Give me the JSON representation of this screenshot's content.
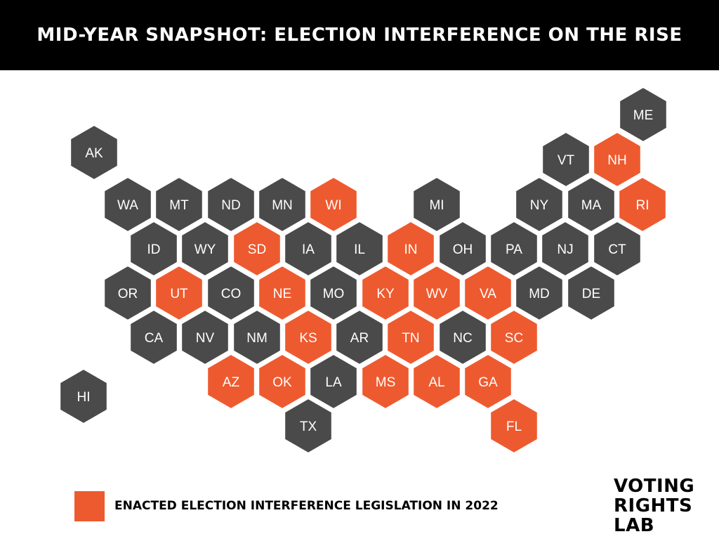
{
  "title": "MID-YEAR SNAPSHOT: ELECTION INTERFERENCE ON THE RISE",
  "colors": {
    "enacted": "#ee5a2f",
    "other": "#4a4a4a",
    "stroke": "#ffffff"
  },
  "states": [
    {
      "abbr": "AK",
      "enacted": false
    },
    {
      "abbr": "HI",
      "enacted": false
    },
    {
      "abbr": "ME",
      "enacted": false
    },
    {
      "abbr": "VT",
      "enacted": false
    },
    {
      "abbr": "NH",
      "enacted": true
    },
    {
      "abbr": "WA",
      "enacted": false
    },
    {
      "abbr": "MT",
      "enacted": false
    },
    {
      "abbr": "ND",
      "enacted": false
    },
    {
      "abbr": "MN",
      "enacted": false
    },
    {
      "abbr": "WI",
      "enacted": true
    },
    {
      "abbr": "MI",
      "enacted": false
    },
    {
      "abbr": "NY",
      "enacted": false
    },
    {
      "abbr": "MA",
      "enacted": false
    },
    {
      "abbr": "RI",
      "enacted": true
    },
    {
      "abbr": "ID",
      "enacted": false
    },
    {
      "abbr": "WY",
      "enacted": false
    },
    {
      "abbr": "SD",
      "enacted": true
    },
    {
      "abbr": "IA",
      "enacted": false
    },
    {
      "abbr": "IL",
      "enacted": false
    },
    {
      "abbr": "IN",
      "enacted": true
    },
    {
      "abbr": "OH",
      "enacted": false
    },
    {
      "abbr": "PA",
      "enacted": false
    },
    {
      "abbr": "NJ",
      "enacted": false
    },
    {
      "abbr": "CT",
      "enacted": false
    },
    {
      "abbr": "OR",
      "enacted": false
    },
    {
      "abbr": "UT",
      "enacted": true
    },
    {
      "abbr": "CO",
      "enacted": false
    },
    {
      "abbr": "NE",
      "enacted": true
    },
    {
      "abbr": "MO",
      "enacted": false
    },
    {
      "abbr": "KY",
      "enacted": true
    },
    {
      "abbr": "WV",
      "enacted": true
    },
    {
      "abbr": "VA",
      "enacted": true
    },
    {
      "abbr": "MD",
      "enacted": false
    },
    {
      "abbr": "DE",
      "enacted": false
    },
    {
      "abbr": "CA",
      "enacted": false
    },
    {
      "abbr": "NV",
      "enacted": false
    },
    {
      "abbr": "NM",
      "enacted": false
    },
    {
      "abbr": "KS",
      "enacted": true
    },
    {
      "abbr": "AR",
      "enacted": false
    },
    {
      "abbr": "TN",
      "enacted": true
    },
    {
      "abbr": "NC",
      "enacted": false
    },
    {
      "abbr": "SC",
      "enacted": true
    },
    {
      "abbr": "AZ",
      "enacted": true
    },
    {
      "abbr": "OK",
      "enacted": true
    },
    {
      "abbr": "LA",
      "enacted": false
    },
    {
      "abbr": "MS",
      "enacted": true
    },
    {
      "abbr": "AL",
      "enacted": true
    },
    {
      "abbr": "GA",
      "enacted": true
    },
    {
      "abbr": "TX",
      "enacted": false
    },
    {
      "abbr": "FL",
      "enacted": true
    }
  ],
  "legend": {
    "label": "ENACTED ELECTION INTERFERENCE LEGISLATION IN 2022"
  },
  "logo": {
    "lines": [
      "VOTING",
      "RIGHTS",
      "LAB"
    ]
  }
}
